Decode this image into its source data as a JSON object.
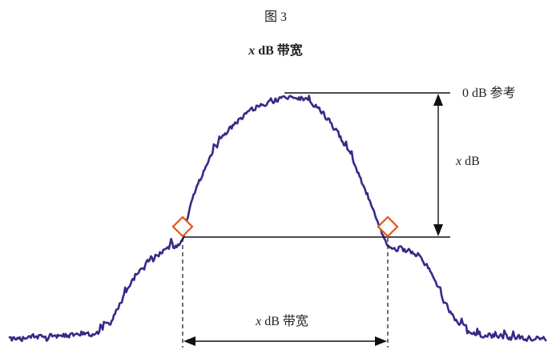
{
  "figure": {
    "label": "图 3",
    "title": {
      "var": "x",
      "text": " dB 带宽"
    }
  },
  "annotations": {
    "reference_label": "0 dB 参考",
    "level_label": {
      "var": "x",
      "text": " dB"
    },
    "bandwidth_label": {
      "var": "x",
      "text": " dB 带宽"
    }
  },
  "colors": {
    "trace": "#3a2888",
    "marker": "#e0561c",
    "lines": "#111111"
  }
}
